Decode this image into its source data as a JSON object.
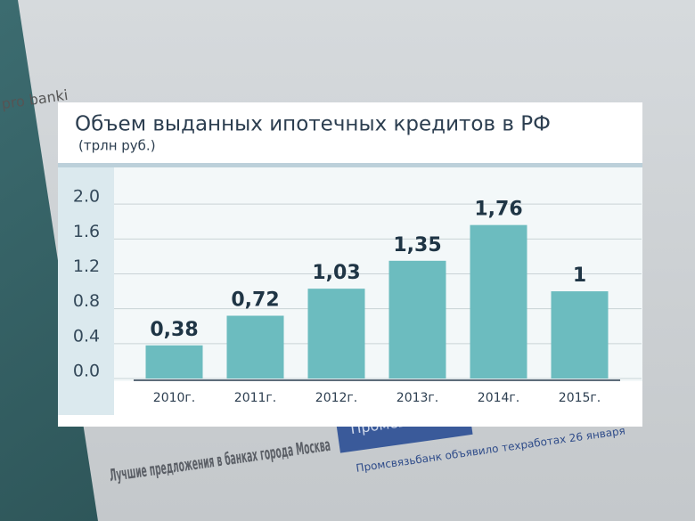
{
  "chart_data": {
    "type": "bar",
    "title": "Объем выданных ипотечных кредитов в РФ",
    "subtitle": "(трлн руб.)",
    "categories": [
      "2010г.",
      "2011г.",
      "2012г.",
      "2013г.",
      "2014г.",
      "2015г."
    ],
    "values": [
      0.38,
      0.72,
      1.03,
      1.35,
      1.76,
      1
    ],
    "value_labels": [
      "0,38",
      "0,72",
      "1,03",
      "1,35",
      "1,76",
      "1"
    ],
    "color": "#6cbcbf",
    "ylim": [
      0,
      2.4
    ],
    "yticks": [
      {
        "value": 0,
        "label": "0.0"
      },
      {
        "value": 0.4,
        "label": "0.4"
      },
      {
        "value": 0.8,
        "label": "0.8"
      },
      {
        "value": 1.2,
        "label": "1.2"
      },
      {
        "value": 1.6,
        "label": "1.6"
      },
      {
        "value": 2,
        "label": "2.0"
      }
    ],
    "grid": true
  },
  "background": {
    "logo": "pro banki",
    "heading": "Лучшие предложения в банках города Москва",
    "banner": "Промсвязь",
    "news": "Промсвязьбанк объявило техработах 26 января"
  }
}
